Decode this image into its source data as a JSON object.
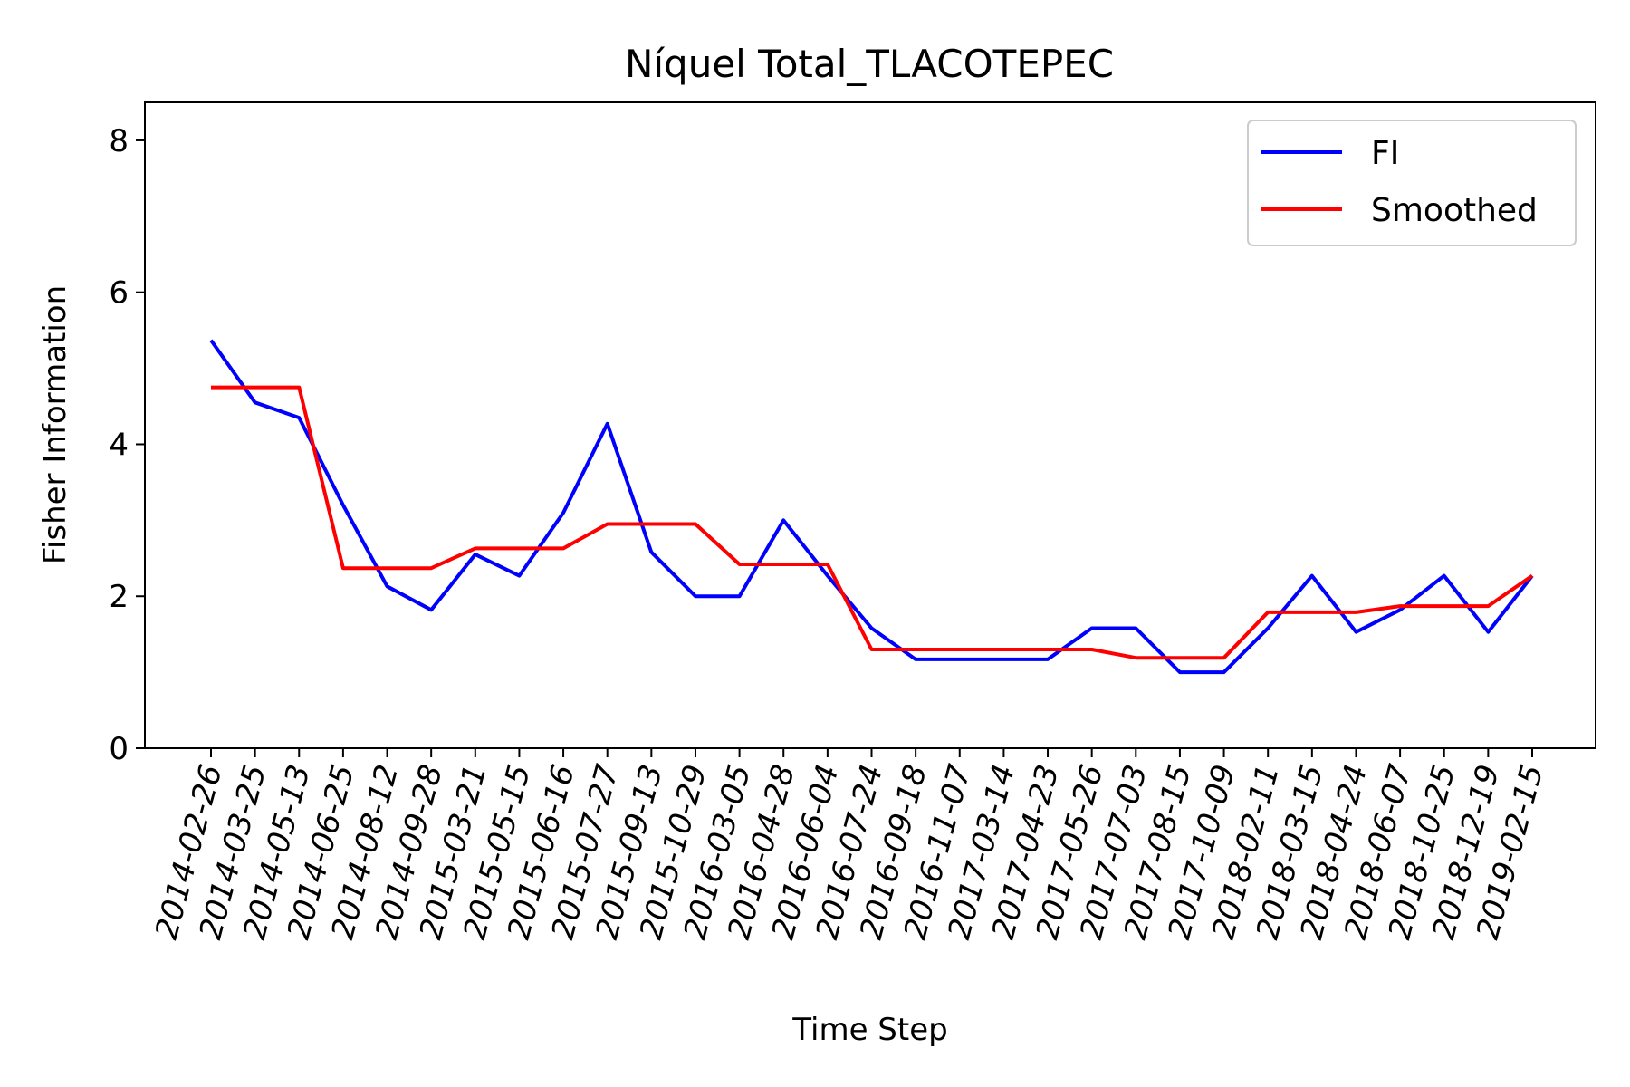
{
  "chart_data": {
    "type": "line",
    "title": "Níquel Total_TLACOTEPEC",
    "xlabel": "Time Step",
    "ylabel": "Fisher Information",
    "ylim": [
      0,
      8.5
    ],
    "yticks": [
      0,
      2,
      4,
      6,
      8
    ],
    "grid": false,
    "legend_position": "top-right",
    "categories": [
      "2014-02-26",
      "2014-03-25",
      "2014-05-13",
      "2014-06-25",
      "2014-08-12",
      "2014-09-28",
      "2015-03-21",
      "2015-05-15",
      "2015-06-16",
      "2015-07-27",
      "2015-09-13",
      "2015-10-29",
      "2016-03-05",
      "2016-04-28",
      "2016-06-04",
      "2016-07-24",
      "2016-09-18",
      "2016-11-07",
      "2017-03-14",
      "2017-04-23",
      "2017-05-26",
      "2017-07-03",
      "2017-08-15",
      "2017-10-09",
      "2018-02-11",
      "2018-03-15",
      "2018-04-24",
      "2018-06-07",
      "2018-10-25",
      "2018-12-19",
      "2019-02-15"
    ],
    "series": [
      {
        "name": "FI",
        "color": "#0000ff",
        "values": [
          5.37,
          4.55,
          4.35,
          3.2,
          2.13,
          1.82,
          2.55,
          2.27,
          3.1,
          4.27,
          2.58,
          2.0,
          2.0,
          3.0,
          2.27,
          1.58,
          1.17,
          1.17,
          1.17,
          1.17,
          1.58,
          1.58,
          1.0,
          1.0,
          1.58,
          2.27,
          1.53,
          1.82,
          2.27,
          1.53,
          2.27
        ]
      },
      {
        "name": "Smoothed",
        "color": "#ff0000",
        "values": [
          4.75,
          4.75,
          4.75,
          2.37,
          2.37,
          2.37,
          2.63,
          2.63,
          2.63,
          2.95,
          2.95,
          2.95,
          2.42,
          2.42,
          2.42,
          1.3,
          1.3,
          1.3,
          1.3,
          1.3,
          1.3,
          1.19,
          1.19,
          1.19,
          1.79,
          1.79,
          1.79,
          1.87,
          1.87,
          1.87,
          2.27
        ]
      }
    ]
  }
}
